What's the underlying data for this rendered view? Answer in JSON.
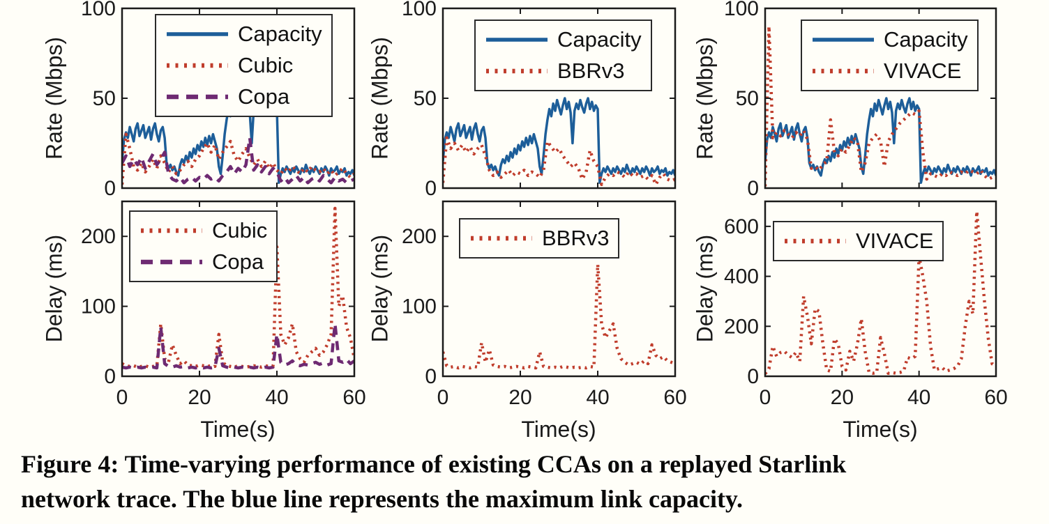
{
  "figure": {
    "caption_lines": [
      "Figure 4: Time-varying performance of existing CCAs on a replayed Starlink",
      "network trace. The blue line represents the maximum link capacity."
    ]
  },
  "colors": {
    "capacity_blue": "#1d5e99",
    "cca_red": "#c03d2c",
    "copa_purple": "#6e2a72",
    "axis": "#1a1a1a",
    "background": "#fffef8"
  },
  "chart_data": [
    {
      "type": "line",
      "ylabel": "Rate (Mbps)",
      "xlabel": "",
      "xlim": [
        0,
        60
      ],
      "ylim": [
        0,
        100
      ],
      "xticks": [
        0,
        20,
        40,
        60
      ],
      "yticks": [
        0,
        50,
        100
      ],
      "show_xtick_labels": false,
      "grid": false,
      "legend_position": "top-center-inside",
      "series": [
        {
          "name": "Capacity",
          "style": "solid",
          "color": "#1d5e99",
          "x0": 0,
          "dx": 0.5,
          "values": [
            15,
            27,
            31,
            28,
            34,
            30,
            26,
            33,
            36,
            29,
            32,
            35,
            28,
            31,
            34,
            27,
            33,
            36,
            30,
            26,
            32,
            34,
            28,
            14,
            11,
            13,
            10,
            12,
            9,
            7,
            13,
            16,
            14,
            18,
            15,
            20,
            17,
            22,
            19,
            24,
            21,
            26,
            23,
            28,
            24,
            29,
            25,
            30,
            26,
            22,
            12,
            8,
            18,
            30,
            38,
            44,
            40,
            47,
            43,
            49,
            45,
            41,
            46,
            50,
            44,
            48,
            42,
            25,
            43,
            47,
            44,
            49,
            45,
            42,
            47,
            50,
            44,
            48,
            43,
            46,
            44,
            3,
            8,
            11,
            9,
            12,
            10,
            8,
            11,
            9,
            12,
            10,
            8,
            11,
            9,
            13,
            10,
            8,
            11,
            9,
            12,
            10,
            8,
            11,
            9,
            12,
            10,
            7,
            11,
            9,
            10,
            12,
            8,
            10,
            9,
            11,
            7,
            9,
            8,
            10,
            7
          ]
        },
        {
          "name": "Cubic",
          "style": "dotted",
          "color": "#c03d2c",
          "x0": 0,
          "dx": 1,
          "values": [
            2,
            30,
            22,
            12,
            10,
            14,
            9,
            12,
            16,
            11,
            18,
            14,
            9,
            12,
            8,
            10,
            13,
            15,
            12,
            16,
            18,
            22,
            25,
            20,
            24,
            16,
            20,
            23,
            26,
            18,
            15,
            19,
            22,
            17,
            13,
            16,
            12,
            15,
            11,
            14,
            10,
            8,
            11,
            9,
            12,
            10,
            8,
            11,
            9,
            12,
            10,
            9,
            11,
            8,
            10,
            7,
            9,
            11,
            8,
            6,
            8
          ]
        },
        {
          "name": "Copa",
          "style": "dashed",
          "color": "#6e2a72",
          "x0": 0,
          "dx": 1,
          "values": [
            14,
            18,
            12,
            16,
            13,
            17,
            11,
            15,
            19,
            13,
            16,
            20,
            8,
            5,
            4,
            6,
            3,
            5,
            6,
            4,
            6,
            5,
            7,
            5,
            6,
            4,
            7,
            9,
            12,
            8,
            11,
            9,
            13,
            28,
            10,
            13,
            9,
            12,
            8,
            11,
            9,
            4,
            6,
            3,
            5,
            7,
            4,
            6,
            3,
            5,
            6,
            4,
            7,
            5,
            3,
            6,
            4,
            5,
            3,
            4,
            5
          ]
        }
      ]
    },
    {
      "type": "line",
      "ylabel": "Rate (Mbps)",
      "xlabel": "",
      "xlim": [
        0,
        60
      ],
      "ylim": [
        0,
        100
      ],
      "xticks": [
        0,
        20,
        40,
        60
      ],
      "yticks": [
        0,
        50,
        100
      ],
      "show_xtick_labels": false,
      "grid": false,
      "legend_position": "top-center-inside",
      "series": [
        {
          "name": "Capacity",
          "style": "solid",
          "color": "#1d5e99",
          "x0": 0,
          "dx": 0.5,
          "values": [
            15,
            27,
            31,
            28,
            34,
            30,
            26,
            33,
            36,
            29,
            32,
            35,
            28,
            31,
            34,
            27,
            33,
            36,
            30,
            26,
            32,
            34,
            28,
            14,
            11,
            13,
            10,
            12,
            9,
            7,
            13,
            16,
            14,
            18,
            15,
            20,
            17,
            22,
            19,
            24,
            21,
            26,
            23,
            28,
            24,
            29,
            25,
            30,
            26,
            22,
            12,
            8,
            18,
            30,
            38,
            44,
            40,
            47,
            43,
            49,
            45,
            41,
            46,
            50,
            44,
            48,
            42,
            25,
            43,
            47,
            44,
            49,
            45,
            42,
            47,
            50,
            44,
            48,
            43,
            46,
            44,
            3,
            8,
            11,
            9,
            12,
            10,
            8,
            11,
            9,
            12,
            10,
            8,
            11,
            9,
            13,
            10,
            8,
            11,
            9,
            12,
            10,
            8,
            11,
            9,
            12,
            10,
            7,
            11,
            9,
            10,
            12,
            8,
            10,
            9,
            11,
            7,
            9,
            8,
            10,
            7
          ]
        },
        {
          "name": "BBRv3",
          "style": "dotted",
          "color": "#c03d2c",
          "x0": 0,
          "dx": 1,
          "values": [
            3,
            28,
            22,
            25,
            21,
            24,
            20,
            23,
            19,
            22,
            24,
            18,
            10,
            7,
            9,
            6,
            8,
            10,
            7,
            9,
            8,
            10,
            7,
            9,
            8,
            6,
            10,
            26,
            23,
            20,
            22,
            18,
            15,
            12,
            14,
            11,
            5,
            9,
            21,
            15,
            12,
            2,
            6,
            8,
            7,
            9,
            8,
            6,
            9,
            7,
            8,
            6,
            7,
            5,
            7,
            2,
            6,
            8,
            5,
            4,
            5
          ]
        }
      ]
    },
    {
      "type": "line",
      "ylabel": "Rate (Mbps)",
      "xlabel": "",
      "xlim": [
        0,
        60
      ],
      "ylim": [
        0,
        100
      ],
      "xticks": [
        0,
        20,
        40,
        60
      ],
      "yticks": [
        0,
        50,
        100
      ],
      "show_xtick_labels": false,
      "grid": false,
      "legend_position": "top-center-inside",
      "series": [
        {
          "name": "Capacity",
          "style": "solid",
          "color": "#1d5e99",
          "x0": 0,
          "dx": 0.5,
          "values": [
            15,
            27,
            31,
            28,
            34,
            30,
            26,
            33,
            36,
            29,
            32,
            35,
            28,
            31,
            34,
            27,
            33,
            36,
            30,
            26,
            32,
            34,
            28,
            14,
            11,
            13,
            10,
            12,
            9,
            7,
            13,
            16,
            14,
            18,
            15,
            20,
            17,
            22,
            19,
            24,
            21,
            26,
            23,
            28,
            24,
            29,
            25,
            30,
            26,
            22,
            12,
            8,
            18,
            30,
            38,
            44,
            40,
            47,
            43,
            49,
            45,
            41,
            46,
            50,
            44,
            48,
            42,
            25,
            43,
            47,
            44,
            49,
            45,
            42,
            47,
            50,
            44,
            48,
            43,
            46,
            44,
            3,
            8,
            11,
            9,
            12,
            10,
            8,
            11,
            9,
            12,
            10,
            8,
            11,
            9,
            13,
            10,
            8,
            11,
            9,
            12,
            10,
            8,
            11,
            9,
            12,
            10,
            7,
            11,
            9,
            10,
            12,
            8,
            10,
            9,
            11,
            7,
            9,
            8,
            10,
            7
          ]
        },
        {
          "name": "VIVACE",
          "style": "dotted",
          "color": "#c03d2c",
          "x0": 0,
          "dx": 1,
          "values": [
            1,
            90,
            28,
            31,
            29,
            32,
            30,
            28,
            31,
            29,
            32,
            27,
            11,
            12,
            10,
            13,
            15,
            38,
            20,
            18,
            22,
            20,
            24,
            28,
            26,
            9,
            14,
            25,
            28,
            30,
            26,
            12,
            26,
            30,
            33,
            36,
            38,
            40,
            42,
            41,
            43,
            20,
            5,
            8,
            7,
            6,
            8,
            7,
            9,
            8,
            7,
            9,
            8,
            10,
            9,
            8,
            10,
            7,
            5,
            6,
            6
          ]
        }
      ]
    },
    {
      "type": "line",
      "ylabel": "Delay (ms)",
      "xlabel": "Time(s)",
      "xlim": [
        0,
        60
      ],
      "ylim": [
        0,
        250
      ],
      "xticks": [
        0,
        20,
        40,
        60
      ],
      "yticks": [
        0,
        100,
        200
      ],
      "show_xtick_labels": true,
      "grid": false,
      "legend_position": "top-center-inside",
      "series": [
        {
          "name": "Cubic",
          "style": "dotted",
          "color": "#c03d2c",
          "x0": 0,
          "dx": 1,
          "values": [
            18,
            15,
            14,
            15,
            13,
            14,
            15,
            13,
            14,
            15,
            75,
            25,
            20,
            45,
            30,
            18,
            22,
            16,
            15,
            14,
            16,
            15,
            14,
            15,
            14,
            60,
            20,
            15,
            14,
            13,
            15,
            14,
            13,
            14,
            15,
            14,
            13,
            15,
            14,
            15,
            185,
            60,
            45,
            55,
            75,
            35,
            25,
            20,
            30,
            35,
            40,
            30,
            35,
            45,
            60,
            240,
            100,
            115,
            70,
            55,
            25
          ]
        },
        {
          "name": "Copa",
          "style": "dashed",
          "color": "#6e2a72",
          "x0": 0,
          "dx": 1,
          "values": [
            13,
            12,
            13,
            12,
            13,
            12,
            13,
            12,
            13,
            12,
            70,
            18,
            14,
            13,
            15,
            13,
            14,
            12,
            13,
            12,
            13,
            12,
            13,
            12,
            13,
            40,
            15,
            13,
            12,
            13,
            12,
            13,
            12,
            13,
            12,
            13,
            12,
            13,
            12,
            13,
            60,
            20,
            16,
            18,
            22,
            16,
            15,
            17,
            16,
            18,
            20,
            17,
            19,
            16,
            18,
            75,
            22,
            20,
            24,
            18,
            22
          ]
        }
      ]
    },
    {
      "type": "line",
      "ylabel": "Delay (ms)",
      "xlabel": "Time(s)",
      "xlim": [
        0,
        60
      ],
      "ylim": [
        0,
        250
      ],
      "xticks": [
        0,
        20,
        40,
        60
      ],
      "yticks": [
        0,
        100,
        200
      ],
      "show_xtick_labels": true,
      "grid": false,
      "legend_position": "top-center-inside",
      "series": [
        {
          "name": "BBRv3",
          "style": "dotted",
          "color": "#c03d2c",
          "x0": 0,
          "dx": 1,
          "values": [
            35,
            15,
            13,
            14,
            12,
            14,
            13,
            12,
            14,
            13,
            48,
            20,
            38,
            16,
            14,
            13,
            14,
            12,
            13,
            14,
            13,
            12,
            14,
            13,
            12,
            35,
            14,
            13,
            12,
            13,
            12,
            14,
            13,
            12,
            13,
            12,
            13,
            12,
            14,
            13,
            160,
            75,
            55,
            65,
            75,
            40,
            25,
            20,
            16,
            18,
            20,
            17,
            22,
            18,
            45,
            30,
            25,
            28,
            22,
            20,
            18
          ]
        }
      ]
    },
    {
      "type": "line",
      "ylabel": "Delay (ms)",
      "xlabel": "Time(s)",
      "xlim": [
        0,
        60
      ],
      "ylim": [
        0,
        700
      ],
      "xticks": [
        0,
        20,
        40,
        60
      ],
      "yticks": [
        0,
        200,
        400,
        600
      ],
      "show_xtick_labels": true,
      "grid": false,
      "legend_position": "top-center-inside",
      "series": [
        {
          "name": "VIVACE",
          "style": "dotted",
          "color": "#c03d2c",
          "x0": 0,
          "dx": 1,
          "values": [
            10,
            30,
            120,
            80,
            95,
            100,
            85,
            75,
            95,
            60,
            320,
            240,
            130,
            270,
            260,
            130,
            25,
            20,
            150,
            130,
            40,
            25,
            100,
            60,
            130,
            230,
            100,
            15,
            12,
            15,
            155,
            90,
            12,
            15,
            12,
            15,
            20,
            75,
            70,
            80,
            480,
            400,
            300,
            120,
            25,
            30,
            35,
            20,
            25,
            30,
            40,
            70,
            200,
            300,
            250,
            660,
            480,
            300,
            150,
            50,
            40
          ]
        }
      ]
    }
  ]
}
